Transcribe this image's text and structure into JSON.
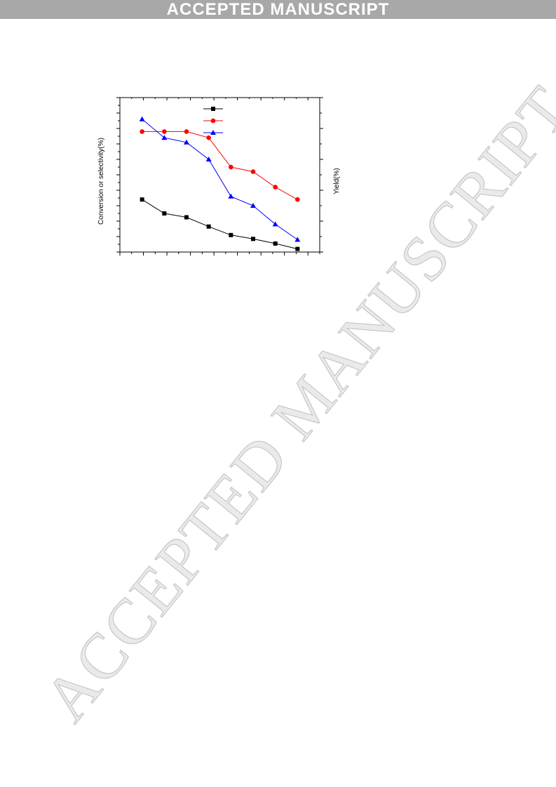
{
  "banner": {
    "text": "ACCEPTED MANUSCRIPT"
  },
  "watermark": {
    "text": "ACCEPTED MANUSCRIPT"
  },
  "chart_data": {
    "type": "line",
    "title": "",
    "xlabel": "",
    "ylabel": "Conversion or selectivity(%)",
    "y2label": "Yield(%)",
    "x": [
      1,
      2,
      3,
      4,
      5,
      6,
      7,
      8
    ],
    "xlim": [
      0,
      9
    ],
    "ylim": [
      0,
      100
    ],
    "y2lim": [
      0,
      50
    ],
    "grid": false,
    "legend": "top-center",
    "series": [
      {
        "marker": "square",
        "color": "#000000",
        "axis": "left",
        "values": [
          34,
          25,
          22.5,
          16.5,
          11,
          8.5,
          5.5,
          2
        ]
      },
      {
        "marker": "circle",
        "color": "#ff0000",
        "axis": "right",
        "values": [
          39,
          39,
          39,
          37,
          27.5,
          26,
          21,
          17
        ]
      },
      {
        "marker": "triangle",
        "color": "#0000ff",
        "axis": "right",
        "values": [
          43,
          37,
          35.5,
          30,
          18,
          15,
          9,
          4
        ]
      }
    ]
  }
}
